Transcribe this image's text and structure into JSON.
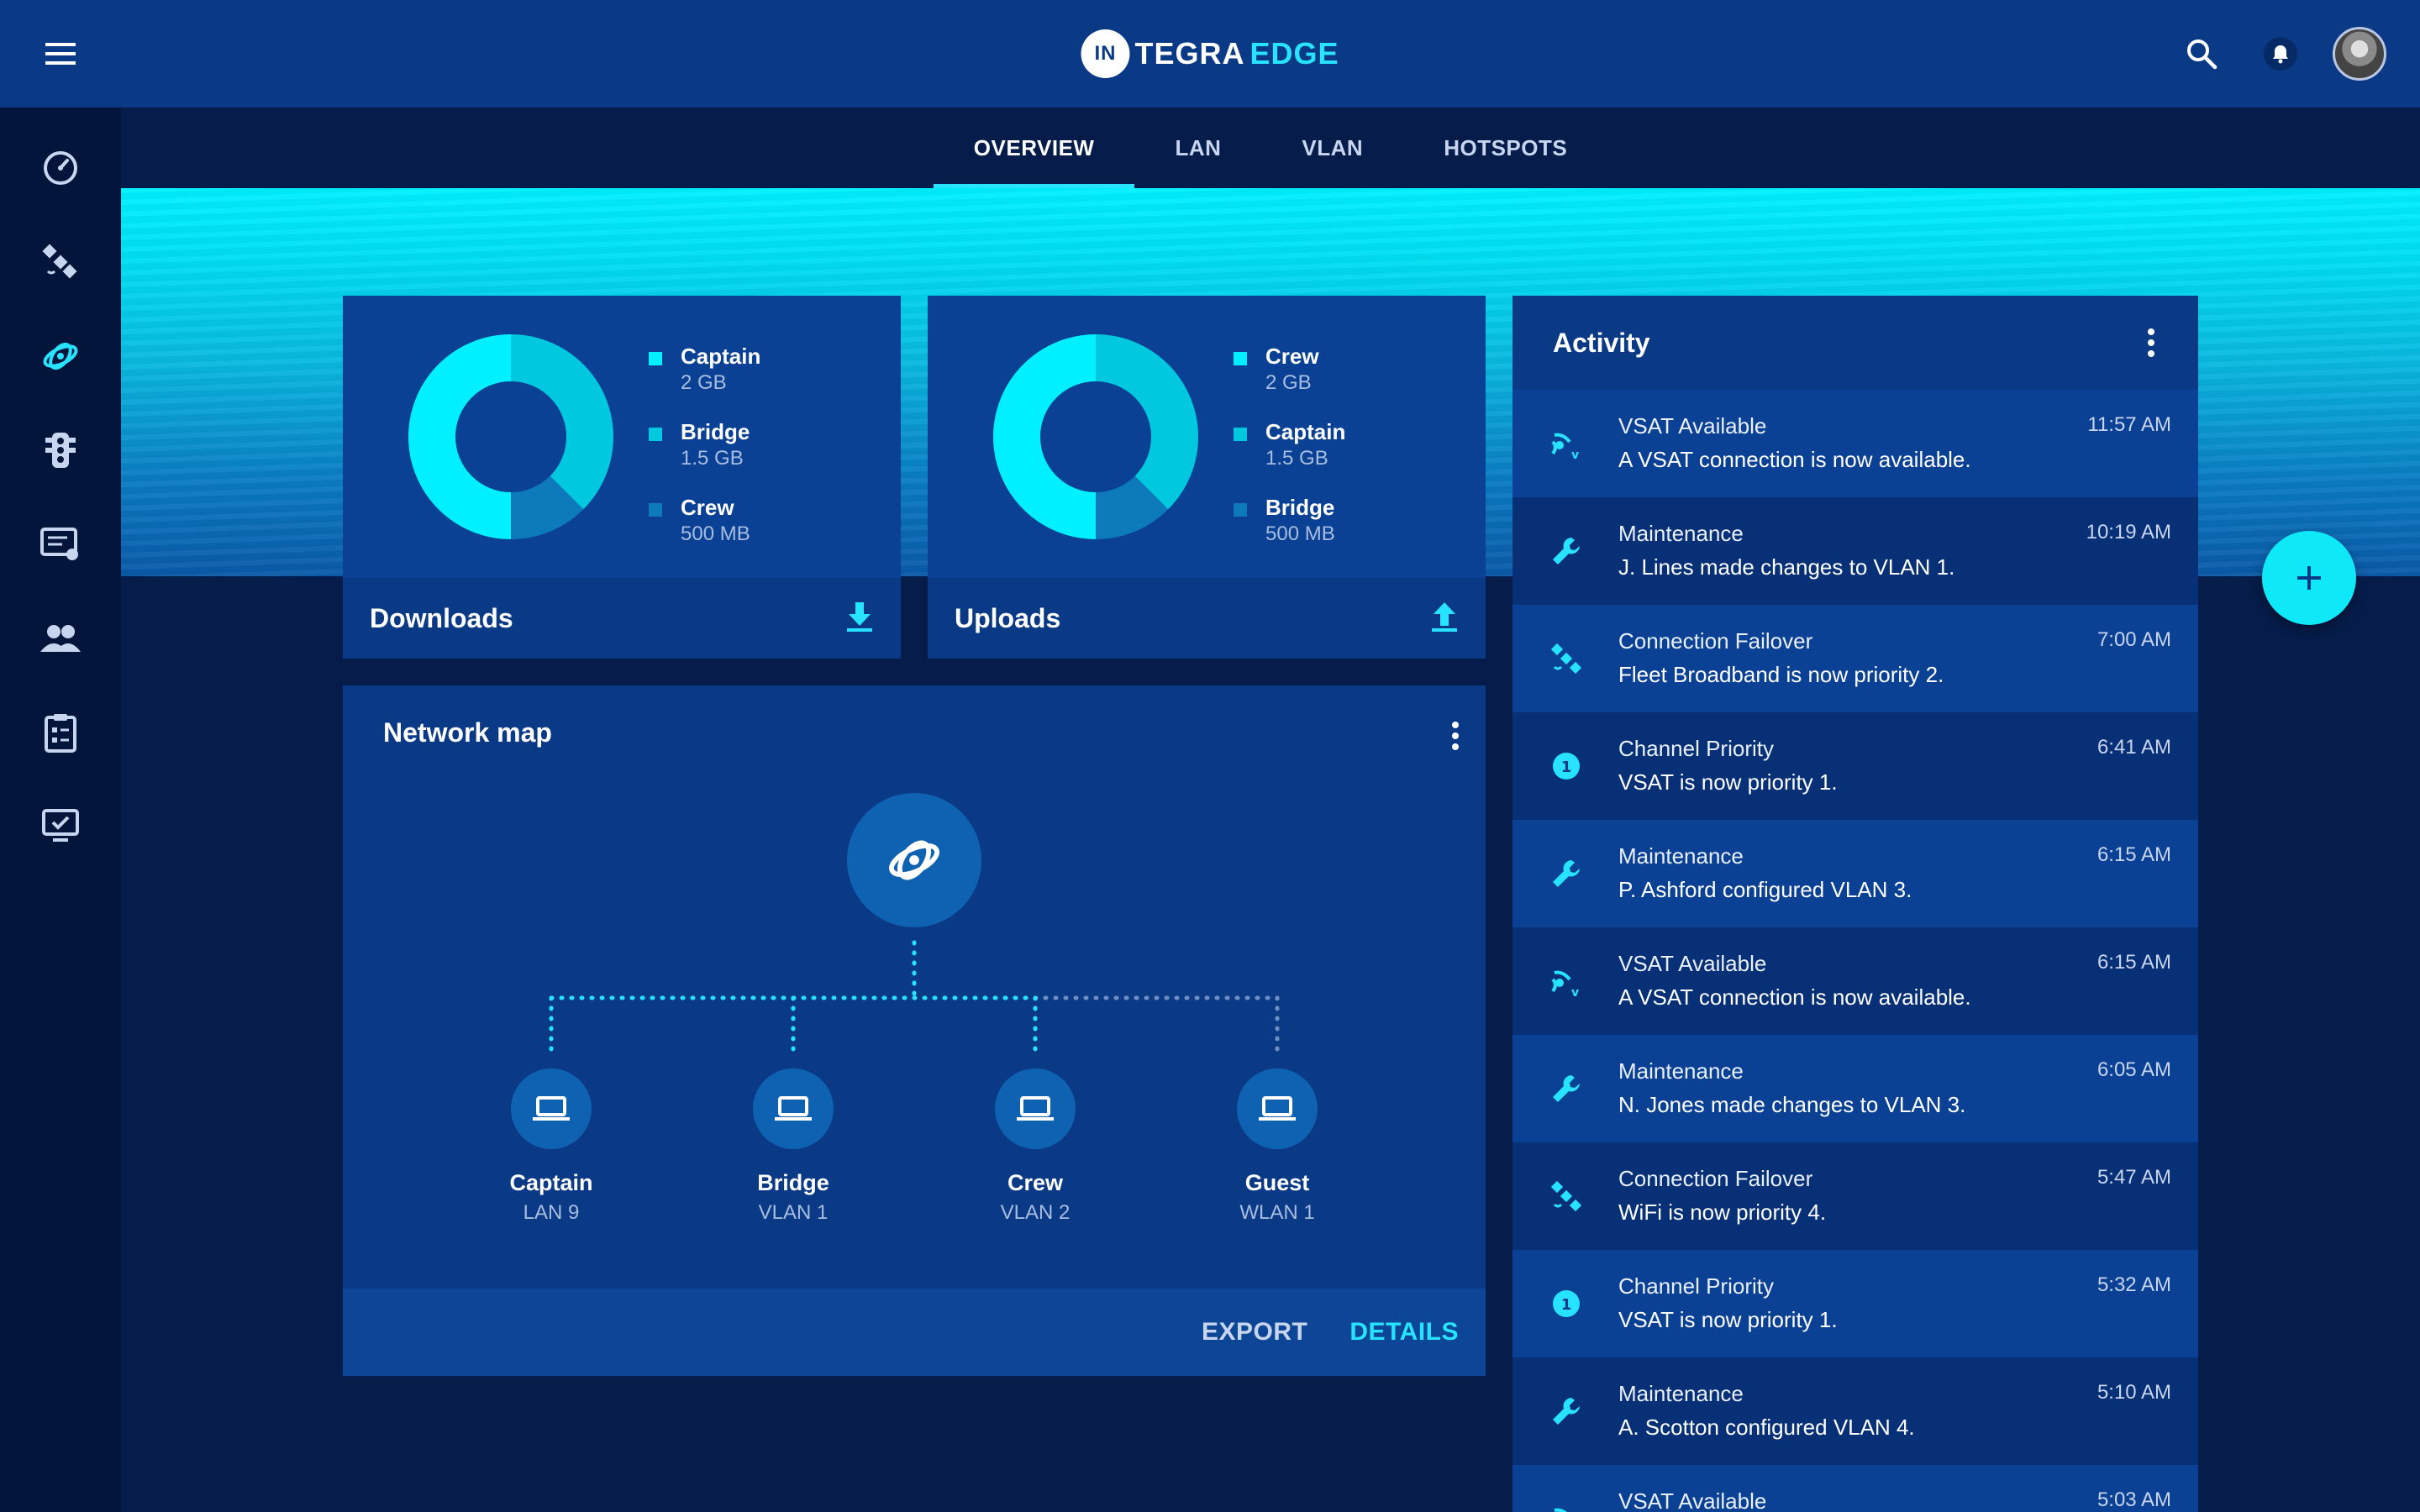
{
  "app": {
    "logo_prefix": "IN",
    "logo_word1": "TEGRA",
    "logo_word2": "EDGE"
  },
  "tabs": [
    {
      "label": "OVERVIEW",
      "active": true
    },
    {
      "label": "LAN",
      "active": false
    },
    {
      "label": "VLAN",
      "active": false
    },
    {
      "label": "HOTSPOTS",
      "active": false
    }
  ],
  "sidebar": [
    {
      "icon": "speedometer-icon"
    },
    {
      "icon": "satellite-icon"
    },
    {
      "icon": "network-orbit-icon",
      "active": true
    },
    {
      "icon": "traffic-light-icon"
    },
    {
      "icon": "monitor-list-icon"
    },
    {
      "icon": "users-icon"
    },
    {
      "icon": "clipboard-icon"
    },
    {
      "icon": "desktop-check-icon"
    }
  ],
  "downloads": {
    "title": "Downloads",
    "legend": [
      {
        "name": "Captain",
        "value": "2 GB",
        "color": "#00f0ff"
      },
      {
        "name": "Bridge",
        "value": "1.5 GB",
        "color": "#00c8de"
      },
      {
        "name": "Crew",
        "value": "500 MB",
        "color": "#0d7bb9"
      }
    ]
  },
  "uploads": {
    "title": "Uploads",
    "legend": [
      {
        "name": "Crew",
        "value": "2 GB",
        "color": "#00f0ff"
      },
      {
        "name": "Captain",
        "value": "1.5 GB",
        "color": "#00c8de"
      },
      {
        "name": "Bridge",
        "value": "500 MB",
        "color": "#0d7bb9"
      }
    ]
  },
  "network_map": {
    "title": "Network map",
    "nodes": [
      {
        "name": "Captain",
        "sub": "LAN 9"
      },
      {
        "name": "Bridge",
        "sub": "VLAN 1"
      },
      {
        "name": "Crew",
        "sub": "VLAN 2"
      },
      {
        "name": "Guest",
        "sub": "WLAN 1"
      }
    ],
    "export_label": "EXPORT",
    "details_label": "DETAILS"
  },
  "activity": {
    "title": "Activity",
    "items": [
      {
        "icon": "vsat-icon",
        "title": "VSAT Available",
        "desc": "A VSAT connection is now available.",
        "time": "11:57 AM"
      },
      {
        "icon": "wrench-icon",
        "title": "Maintenance",
        "desc": "J. Lines made changes to VLAN 1.",
        "time": "10:19 AM"
      },
      {
        "icon": "satellite-icon",
        "title": "Connection Failover",
        "desc": "Fleet Broadband is now priority 2.",
        "time": "7:00 AM"
      },
      {
        "icon": "priority-icon",
        "title": "Channel Priority",
        "desc": "VSAT is now priority 1.",
        "time": "6:41 AM"
      },
      {
        "icon": "wrench-icon",
        "title": "Maintenance",
        "desc": "P. Ashford configured VLAN 3.",
        "time": "6:15 AM"
      },
      {
        "icon": "vsat-icon",
        "title": "VSAT Available",
        "desc": "A VSAT connection is now available.",
        "time": "6:15 AM"
      },
      {
        "icon": "wrench-icon",
        "title": "Maintenance",
        "desc": "N. Jones made changes to VLAN 3.",
        "time": "6:05 AM"
      },
      {
        "icon": "satellite-icon",
        "title": "Connection Failover",
        "desc": "WiFi is now priority 4.",
        "time": "5:47 AM"
      },
      {
        "icon": "priority-icon",
        "title": "Channel Priority",
        "desc": "VSAT is now priority 1.",
        "time": "5:32 AM"
      },
      {
        "icon": "wrench-icon",
        "title": "Maintenance",
        "desc": "A. Scotton configured VLAN 4.",
        "time": "5:10 AM"
      },
      {
        "icon": "vsat-icon",
        "title": "VSAT Available",
        "desc": "",
        "time": "5:03 AM"
      }
    ]
  },
  "colors": {
    "accent": "#27e3ff",
    "header": "#0a3a86",
    "background": "#061c4a"
  }
}
